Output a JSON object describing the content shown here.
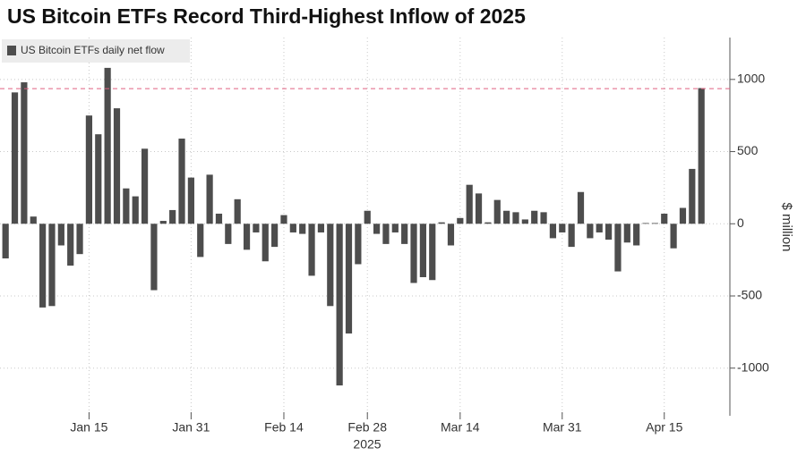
{
  "chart_data": {
    "type": "bar",
    "title": "US Bitcoin ETFs Record Third-Highest Inflow of 2025",
    "y_axis_label": "$ million",
    "x_year_label": "2025",
    "legend_position": "top-left",
    "grid": true,
    "reference_line": 936,
    "reference_line_color": "#e06080",
    "series": [
      {
        "name": "US Bitcoin ETFs daily net flow",
        "color": "#4d4d4d",
        "values": [
          -240,
          910,
          980,
          50,
          -580,
          -570,
          -150,
          -290,
          -210,
          750,
          620,
          1080,
          800,
          245,
          190,
          520,
          -460,
          20,
          95,
          590,
          320,
          -230,
          340,
          70,
          -140,
          170,
          -180,
          -60,
          -260,
          -160,
          60,
          -60,
          -70,
          -360,
          -60,
          -570,
          -1120,
          -760,
          -280,
          90,
          -70,
          -140,
          -60,
          -140,
          -410,
          -370,
          -390,
          10,
          -150,
          40,
          270,
          210,
          10,
          165,
          90,
          80,
          30,
          90,
          80,
          -100,
          -60,
          -160,
          220,
          -100,
          -60,
          -110,
          -330,
          -130,
          -150,
          5,
          5,
          70,
          -170,
          110,
          380,
          940
        ]
      }
    ],
    "categories": [
      null,
      null,
      null,
      null,
      null,
      null,
      null,
      null,
      null,
      "Jan 15",
      null,
      null,
      null,
      null,
      null,
      null,
      null,
      null,
      null,
      null,
      "Jan 31",
      null,
      null,
      null,
      null,
      null,
      null,
      null,
      null,
      null,
      "Feb 14",
      null,
      null,
      null,
      null,
      null,
      null,
      null,
      null,
      "Feb 28",
      null,
      null,
      null,
      null,
      null,
      null,
      null,
      null,
      null,
      "Mar 14",
      null,
      null,
      null,
      null,
      null,
      null,
      null,
      null,
      null,
      null,
      "Mar 31",
      null,
      null,
      null,
      null,
      null,
      null,
      null,
      null,
      null,
      null,
      "Apr 15",
      null,
      null,
      null,
      null
    ],
    "ylim": [
      -1330,
      1290
    ],
    "yticks": [
      -1000,
      -500,
      0,
      500,
      1000
    ]
  }
}
